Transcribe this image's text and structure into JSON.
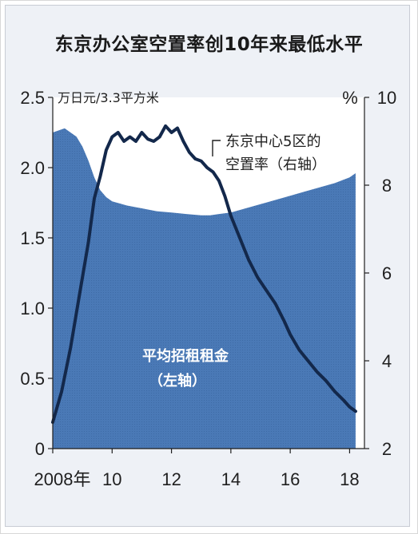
{
  "chart_data": {
    "type": "area",
    "title": "东京办公室空置率创10年来最低水平",
    "left_axis_unit": "万日元/3.3平方米",
    "right_axis_unit": "%",
    "left_ticks": [
      "0",
      "0.5",
      "1.0",
      "1.5",
      "2.0",
      "2.5"
    ],
    "right_ticks": [
      "2",
      "4",
      "6",
      "8",
      "10"
    ],
    "x_ticks": [
      "2008年",
      "10",
      "12",
      "14",
      "16",
      "18"
    ],
    "x_range": [
      2008.0,
      2018.5
    ],
    "left_ylim": [
      0,
      2.5
    ],
    "right_ylim": [
      2,
      10
    ],
    "series": [
      {
        "name": "平均招租租金",
        "name_line2": "（左轴）",
        "axis": "left",
        "style": "area",
        "color": "#4a79b6",
        "x": [
          2008.0,
          2008.4,
          2008.8,
          2009.0,
          2009.2,
          2009.4,
          2009.6,
          2009.8,
          2010.0,
          2010.5,
          2011.0,
          2011.5,
          2012.0,
          2012.5,
          2013.0,
          2013.3,
          2013.6,
          2014.0,
          2014.5,
          2015.0,
          2015.5,
          2016.0,
          2016.5,
          2017.0,
          2017.5,
          2018.0,
          2018.2
        ],
        "values": [
          2.25,
          2.28,
          2.22,
          2.15,
          2.05,
          1.93,
          1.84,
          1.79,
          1.76,
          1.73,
          1.71,
          1.69,
          1.68,
          1.67,
          1.66,
          1.66,
          1.67,
          1.68,
          1.71,
          1.74,
          1.77,
          1.8,
          1.83,
          1.86,
          1.89,
          1.93,
          1.96
        ]
      },
      {
        "name": "东京中心5区的",
        "name_line2": "空置率（右轴）",
        "axis": "right",
        "style": "line",
        "color": "#13284b",
        "x": [
          2008.0,
          2008.3,
          2008.6,
          2008.9,
          2009.2,
          2009.4,
          2009.6,
          2009.8,
          2010.0,
          2010.2,
          2010.4,
          2010.6,
          2010.8,
          2011.0,
          2011.2,
          2011.4,
          2011.6,
          2011.8,
          2012.0,
          2012.2,
          2012.4,
          2012.6,
          2012.8,
          2013.0,
          2013.2,
          2013.4,
          2013.6,
          2013.8,
          2014.0,
          2014.3,
          2014.6,
          2014.9,
          2015.2,
          2015.5,
          2015.8,
          2016.0,
          2016.3,
          2016.6,
          2016.9,
          2017.2,
          2017.5,
          2017.8,
          2018.0,
          2018.2
        ],
        "values": [
          2.6,
          3.3,
          4.3,
          5.5,
          6.7,
          7.7,
          8.2,
          8.8,
          9.1,
          9.2,
          9.0,
          9.1,
          9.0,
          9.2,
          9.05,
          9.0,
          9.1,
          9.35,
          9.2,
          9.3,
          9.0,
          8.75,
          8.6,
          8.55,
          8.4,
          8.3,
          8.1,
          7.75,
          7.3,
          6.8,
          6.3,
          5.9,
          5.6,
          5.3,
          4.9,
          4.6,
          4.25,
          4.0,
          3.75,
          3.55,
          3.3,
          3.1,
          2.95,
          2.85
        ]
      }
    ]
  }
}
